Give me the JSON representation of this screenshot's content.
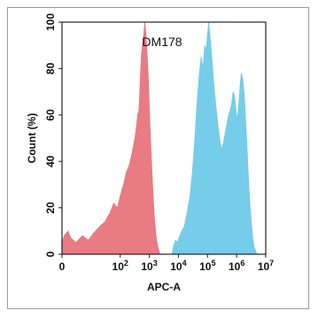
{
  "chart_data": {
    "type": "area",
    "title": "DM178",
    "xlabel": "APC-A",
    "ylabel": "Count (%)",
    "x_scale": "log",
    "xlim": [
      1,
      10000000
    ],
    "ylim": [
      0,
      100
    ],
    "grid": false,
    "x_ticks": [
      {
        "value": 1,
        "base": "0",
        "exp": ""
      },
      {
        "value": 100,
        "base": "10",
        "exp": "2"
      },
      {
        "value": 1000,
        "base": "10",
        "exp": "3"
      },
      {
        "value": 10000,
        "base": "10",
        "exp": "4"
      },
      {
        "value": 100000,
        "base": "10",
        "exp": "5"
      },
      {
        "value": 1000000,
        "base": "10",
        "exp": "6"
      },
      {
        "value": 10000000,
        "base": "10",
        "exp": "7"
      }
    ],
    "y_ticks": [
      "0",
      "20",
      "40",
      "60",
      "80",
      "100"
    ],
    "series": [
      {
        "color": "#e8747c",
        "x": [
          1,
          1.2,
          1.6,
          2,
          3,
          5,
          8,
          12,
          20,
          30,
          45,
          60,
          80,
          100,
          130,
          160,
          200,
          240,
          280,
          320,
          360,
          400,
          440,
          470,
          500,
          530,
          560,
          600,
          650,
          700,
          750,
          800,
          860,
          930,
          1000,
          1100,
          1200,
          1350,
          1500,
          1700,
          1900,
          2100,
          2300
        ],
        "y": [
          5,
          8,
          10,
          7,
          5,
          8,
          6,
          9,
          12,
          14,
          18,
          22,
          20,
          25,
          30,
          35,
          38,
          42,
          46,
          50,
          55,
          60,
          62,
          70,
          78,
          85,
          88,
          92,
          95,
          100,
          96,
          90,
          84,
          75,
          62,
          50,
          38,
          25,
          15,
          8,
          4,
          2,
          0
        ]
      },
      {
        "color": "#6ecae8",
        "x": [
          6000,
          7000,
          8000,
          9500,
          11000,
          13000,
          16000,
          20000,
          25000,
          30000,
          36000,
          42000,
          50000,
          60000,
          70000,
          80000,
          90000,
          100000,
          110000,
          125000,
          140000,
          160000,
          180000,
          200000,
          230000,
          260000,
          300000,
          350000,
          400000,
          460000,
          530000,
          600000,
          680000,
          760000,
          850000,
          950000,
          1050000,
          1150000,
          1300000,
          1450000,
          1600000,
          1800000,
          2000000,
          2300000,
          2600000,
          3000000,
          3500000,
          4000000,
          5000000
        ],
        "y": [
          0,
          4,
          6,
          5,
          8,
          10,
          12,
          18,
          25,
          35,
          48,
          62,
          75,
          85,
          80,
          90,
          88,
          95,
          100,
          92,
          85,
          75,
          68,
          62,
          55,
          50,
          45,
          48,
          52,
          56,
          60,
          62,
          65,
          70,
          68,
          62,
          58,
          62,
          72,
          78,
          76,
          70,
          60,
          45,
          30,
          18,
          8,
          3,
          0
        ]
      }
    ]
  }
}
